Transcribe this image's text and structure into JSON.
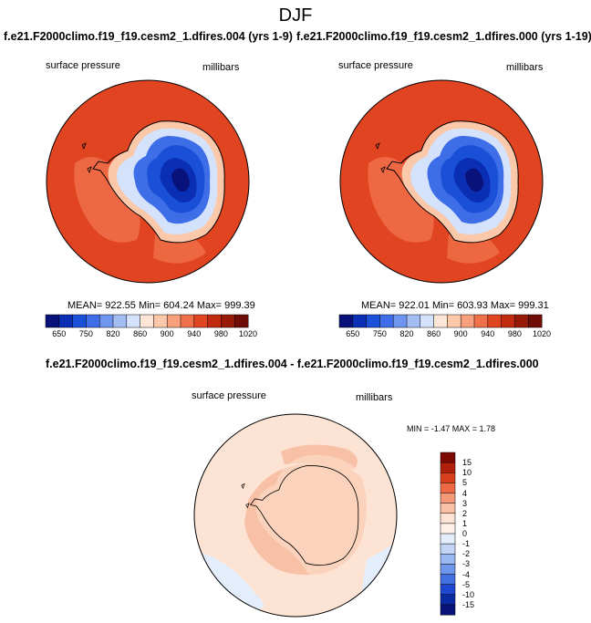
{
  "title": "DJF",
  "panels": [
    {
      "run_title": "f.e21.F2000climo.f19_f19.cesm2_1.dfires.004 (yrs 1-9)",
      "left_label": "surface pressure",
      "right_label": "millibars",
      "stats": "MEAN= 922.55  Min= 604.24  Max= 999.39"
    },
    {
      "run_title": "f.e21.F2000climo.f19_f19.cesm2_1.dfires.000 (yrs 1-19)",
      "left_label": "surface pressure",
      "right_label": "millibars",
      "stats": "MEAN= 922.01  Min= 603.93  Max= 999.31"
    }
  ],
  "colorbar_top": {
    "colors": [
      "#08127a",
      "#0a2fb4",
      "#1a4fd8",
      "#3d6ee8",
      "#6f95ef",
      "#a3bdf4",
      "#d4e2fb",
      "#fde6d6",
      "#fbc8a9",
      "#f7a07b",
      "#f0704a",
      "#e04420",
      "#c22a10",
      "#981a08",
      "#6f0c03"
    ],
    "tick_labels": [
      "650",
      "750",
      "820",
      "860",
      "900",
      "940",
      "980",
      "1020"
    ]
  },
  "diff": {
    "title": "f.e21.F2000climo.f19_f19.cesm2_1.dfires.004 - f.e21.F2000climo.f19_f19.cesm2_1.dfires.000",
    "left_label": "surface pressure",
    "right_label": "millibars",
    "stats": "MIN =  -1.47 MAX =   1.78"
  },
  "colorbar_diff": {
    "colors_top_to_bottom": [
      "#7f0a04",
      "#b0200c",
      "#d8401c",
      "#ee6a44",
      "#f59878",
      "#f8c0a5",
      "#fde3d3",
      "#fff1e8",
      "#e4edfb",
      "#c3d5f6",
      "#9ab8f1",
      "#6e96ea",
      "#4471e2",
      "#1d48cf",
      "#0a2aa2",
      "#08137a"
    ],
    "tick_labels": [
      "15",
      "10",
      "5",
      "4",
      "3",
      "2",
      "1",
      "0",
      "-1",
      "-2",
      "-3",
      "-4",
      "-5",
      "-10",
      "-15"
    ]
  }
}
